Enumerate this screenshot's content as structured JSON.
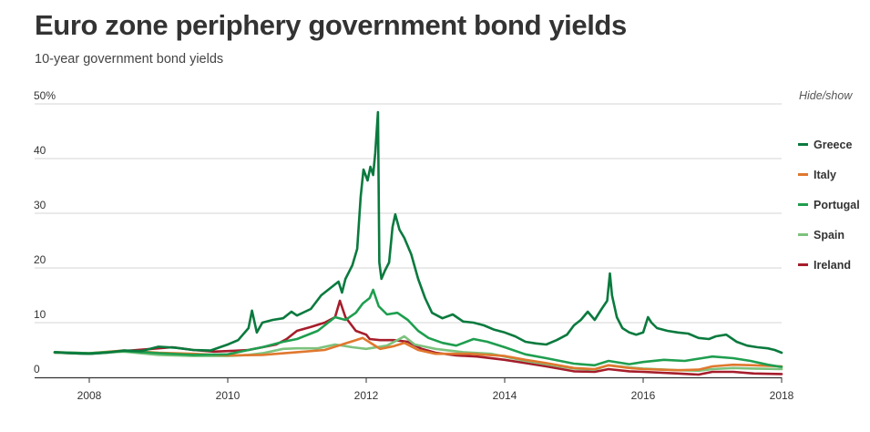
{
  "header": {
    "title": "Euro zone periphery government bond yields",
    "subtitle": "10-year government bond yields"
  },
  "legend": {
    "toggle_label": "Hide/show",
    "placement": "right"
  },
  "chart_data": {
    "type": "line",
    "title": "Euro zone periphery government bond yields",
    "subtitle": "10-year government bond yields",
    "xlabel": "",
    "ylabel": "",
    "xlim": [
      2007.5,
      2018.0
    ],
    "ylim": [
      0,
      50
    ],
    "x_ticks": [
      2008,
      2010,
      2012,
      2014,
      2016,
      2018
    ],
    "x_tick_labels": [
      "2008",
      "2010",
      "2012",
      "2014",
      "2016",
      "2018"
    ],
    "y_ticks": [
      0,
      10,
      20,
      30,
      40,
      50
    ],
    "y_tick_labels": [
      "0",
      "10",
      "20",
      "30",
      "40",
      "50%"
    ],
    "grid": "horizontal",
    "series": [
      {
        "name": "Greece",
        "color": "#0a7a3e",
        "points": [
          [
            2007.5,
            4.6
          ],
          [
            2007.75,
            4.4
          ],
          [
            2008.0,
            4.3
          ],
          [
            2008.25,
            4.5
          ],
          [
            2008.5,
            4.9
          ],
          [
            2008.75,
            4.8
          ],
          [
            2009.0,
            5.6
          ],
          [
            2009.25,
            5.4
          ],
          [
            2009.5,
            5.0
          ],
          [
            2009.75,
            4.9
          ],
          [
            2010.0,
            6.0
          ],
          [
            2010.15,
            6.8
          ],
          [
            2010.3,
            9.0
          ],
          [
            2010.35,
            12.2
          ],
          [
            2010.42,
            8.2
          ],
          [
            2010.5,
            10.0
          ],
          [
            2010.65,
            10.5
          ],
          [
            2010.8,
            10.8
          ],
          [
            2010.92,
            12.0
          ],
          [
            2011.0,
            11.3
          ],
          [
            2011.2,
            12.5
          ],
          [
            2011.35,
            15.0
          ],
          [
            2011.5,
            16.5
          ],
          [
            2011.6,
            17.5
          ],
          [
            2011.65,
            15.5
          ],
          [
            2011.7,
            18.0
          ],
          [
            2011.8,
            20.5
          ],
          [
            2011.87,
            23.5
          ],
          [
            2011.92,
            33.0
          ],
          [
            2011.96,
            38.0
          ],
          [
            2012.02,
            36.0
          ],
          [
            2012.06,
            38.5
          ],
          [
            2012.1,
            37.0
          ],
          [
            2012.13,
            41.0
          ],
          [
            2012.17,
            48.5
          ],
          [
            2012.19,
            21.0
          ],
          [
            2012.22,
            18.0
          ],
          [
            2012.27,
            19.5
          ],
          [
            2012.33,
            21.0
          ],
          [
            2012.38,
            27.5
          ],
          [
            2012.42,
            29.8
          ],
          [
            2012.48,
            27.0
          ],
          [
            2012.55,
            25.5
          ],
          [
            2012.65,
            22.5
          ],
          [
            2012.75,
            18.0
          ],
          [
            2012.85,
            14.5
          ],
          [
            2012.95,
            11.8
          ],
          [
            2013.1,
            10.8
          ],
          [
            2013.25,
            11.5
          ],
          [
            2013.4,
            10.2
          ],
          [
            2013.55,
            10.0
          ],
          [
            2013.7,
            9.5
          ],
          [
            2013.85,
            8.7
          ],
          [
            2014.0,
            8.2
          ],
          [
            2014.15,
            7.5
          ],
          [
            2014.3,
            6.5
          ],
          [
            2014.45,
            6.2
          ],
          [
            2014.6,
            6.0
          ],
          [
            2014.75,
            6.8
          ],
          [
            2014.9,
            7.8
          ],
          [
            2015.0,
            9.5
          ],
          [
            2015.1,
            10.5
          ],
          [
            2015.2,
            12.0
          ],
          [
            2015.3,
            10.5
          ],
          [
            2015.4,
            12.5
          ],
          [
            2015.48,
            14.0
          ],
          [
            2015.52,
            19.0
          ],
          [
            2015.55,
            15.0
          ],
          [
            2015.62,
            11.0
          ],
          [
            2015.7,
            9.0
          ],
          [
            2015.8,
            8.2
          ],
          [
            2015.9,
            7.8
          ],
          [
            2016.0,
            8.2
          ],
          [
            2016.07,
            11.0
          ],
          [
            2016.12,
            10.0
          ],
          [
            2016.2,
            9.0
          ],
          [
            2016.35,
            8.5
          ],
          [
            2016.5,
            8.2
          ],
          [
            2016.65,
            8.0
          ],
          [
            2016.8,
            7.2
          ],
          [
            2016.95,
            7.0
          ],
          [
            2017.05,
            7.5
          ],
          [
            2017.2,
            7.8
          ],
          [
            2017.35,
            6.5
          ],
          [
            2017.5,
            5.8
          ],
          [
            2017.65,
            5.5
          ],
          [
            2017.8,
            5.3
          ],
          [
            2017.9,
            5.0
          ],
          [
            2018.0,
            4.5
          ]
        ]
      },
      {
        "name": "Italy",
        "color": "#e0782e",
        "points": [
          [
            2007.5,
            4.6
          ],
          [
            2008.0,
            4.4
          ],
          [
            2008.5,
            4.9
          ],
          [
            2009.0,
            4.5
          ],
          [
            2009.5,
            4.3
          ],
          [
            2010.0,
            4.0
          ],
          [
            2010.5,
            4.1
          ],
          [
            2011.0,
            4.6
          ],
          [
            2011.4,
            5.0
          ],
          [
            2011.6,
            5.8
          ],
          [
            2011.85,
            6.8
          ],
          [
            2011.95,
            7.2
          ],
          [
            2012.1,
            6.0
          ],
          [
            2012.2,
            5.2
          ],
          [
            2012.4,
            5.7
          ],
          [
            2012.55,
            6.3
          ],
          [
            2012.75,
            5.0
          ],
          [
            2013.0,
            4.3
          ],
          [
            2013.5,
            4.3
          ],
          [
            2014.0,
            3.9
          ],
          [
            2014.3,
            3.2
          ],
          [
            2014.6,
            2.6
          ],
          [
            2015.0,
            1.7
          ],
          [
            2015.3,
            1.5
          ],
          [
            2015.5,
            2.2
          ],
          [
            2015.8,
            1.7
          ],
          [
            2016.0,
            1.5
          ],
          [
            2016.5,
            1.3
          ],
          [
            2016.8,
            1.4
          ],
          [
            2017.0,
            2.0
          ],
          [
            2017.3,
            2.3
          ],
          [
            2017.6,
            2.2
          ],
          [
            2018.0,
            2.0
          ]
        ]
      },
      {
        "name": "Portugal",
        "color": "#1f9e4f",
        "points": [
          [
            2007.5,
            4.6
          ],
          [
            2008.0,
            4.4
          ],
          [
            2008.5,
            4.8
          ],
          [
            2009.0,
            4.4
          ],
          [
            2009.5,
            4.1
          ],
          [
            2010.0,
            4.2
          ],
          [
            2010.3,
            5.0
          ],
          [
            2010.5,
            5.5
          ],
          [
            2010.8,
            6.5
          ],
          [
            2011.0,
            7.0
          ],
          [
            2011.3,
            8.5
          ],
          [
            2011.55,
            11.0
          ],
          [
            2011.7,
            10.5
          ],
          [
            2011.85,
            11.8
          ],
          [
            2011.95,
            13.5
          ],
          [
            2012.05,
            14.5
          ],
          [
            2012.1,
            16.0
          ],
          [
            2012.18,
            13.0
          ],
          [
            2012.3,
            11.5
          ],
          [
            2012.45,
            11.8
          ],
          [
            2012.6,
            10.5
          ],
          [
            2012.75,
            8.5
          ],
          [
            2012.9,
            7.2
          ],
          [
            2013.1,
            6.3
          ],
          [
            2013.3,
            5.8
          ],
          [
            2013.55,
            7.0
          ],
          [
            2013.75,
            6.5
          ],
          [
            2014.0,
            5.5
          ],
          [
            2014.3,
            4.2
          ],
          [
            2014.6,
            3.5
          ],
          [
            2015.0,
            2.5
          ],
          [
            2015.3,
            2.2
          ],
          [
            2015.5,
            3.0
          ],
          [
            2015.8,
            2.4
          ],
          [
            2016.0,
            2.8
          ],
          [
            2016.3,
            3.2
          ],
          [
            2016.6,
            3.0
          ],
          [
            2016.85,
            3.5
          ],
          [
            2017.0,
            3.8
          ],
          [
            2017.3,
            3.5
          ],
          [
            2017.55,
            3.0
          ],
          [
            2017.8,
            2.3
          ],
          [
            2018.0,
            1.9
          ]
        ]
      },
      {
        "name": "Spain",
        "color": "#7dc27d",
        "points": [
          [
            2007.5,
            4.5
          ],
          [
            2008.0,
            4.3
          ],
          [
            2008.5,
            4.7
          ],
          [
            2009.0,
            4.1
          ],
          [
            2009.5,
            3.9
          ],
          [
            2010.0,
            3.9
          ],
          [
            2010.3,
            4.1
          ],
          [
            2010.5,
            4.4
          ],
          [
            2010.8,
            5.2
          ],
          [
            2011.0,
            5.3
          ],
          [
            2011.3,
            5.3
          ],
          [
            2011.55,
            6.0
          ],
          [
            2011.8,
            5.5
          ],
          [
            2012.0,
            5.2
          ],
          [
            2012.3,
            5.8
          ],
          [
            2012.45,
            6.8
          ],
          [
            2012.55,
            7.5
          ],
          [
            2012.7,
            6.0
          ],
          [
            2012.85,
            5.6
          ],
          [
            2013.0,
            5.2
          ],
          [
            2013.4,
            4.6
          ],
          [
            2013.8,
            4.3
          ],
          [
            2014.0,
            3.8
          ],
          [
            2014.3,
            3.0
          ],
          [
            2014.6,
            2.4
          ],
          [
            2015.0,
            1.6
          ],
          [
            2015.3,
            1.4
          ],
          [
            2015.5,
            2.2
          ],
          [
            2015.8,
            1.8
          ],
          [
            2016.0,
            1.6
          ],
          [
            2016.5,
            1.3
          ],
          [
            2016.8,
            1.2
          ],
          [
            2017.0,
            1.5
          ],
          [
            2017.3,
            1.7
          ],
          [
            2017.6,
            1.6
          ],
          [
            2018.0,
            1.5
          ]
        ]
      },
      {
        "name": "Ireland",
        "color": "#a61d2b",
        "points": [
          [
            2007.5,
            4.5
          ],
          [
            2008.0,
            4.3
          ],
          [
            2008.5,
            4.8
          ],
          [
            2009.0,
            5.3
          ],
          [
            2009.2,
            5.5
          ],
          [
            2009.5,
            5.0
          ],
          [
            2009.8,
            4.7
          ],
          [
            2010.0,
            4.8
          ],
          [
            2010.3,
            5.0
          ],
          [
            2010.5,
            5.5
          ],
          [
            2010.7,
            6.0
          ],
          [
            2010.85,
            7.0
          ],
          [
            2011.0,
            8.5
          ],
          [
            2011.2,
            9.2
          ],
          [
            2011.4,
            10.0
          ],
          [
            2011.55,
            11.0
          ],
          [
            2011.62,
            14.0
          ],
          [
            2011.7,
            11.0
          ],
          [
            2011.85,
            8.5
          ],
          [
            2012.0,
            7.8
          ],
          [
            2012.05,
            7.0
          ],
          [
            2012.2,
            6.8
          ],
          [
            2012.4,
            6.8
          ],
          [
            2012.6,
            6.5
          ],
          [
            2012.8,
            5.2
          ],
          [
            2013.0,
            4.5
          ],
          [
            2013.3,
            4.0
          ],
          [
            2013.6,
            3.8
          ],
          [
            2014.0,
            3.2
          ],
          [
            2014.3,
            2.6
          ],
          [
            2014.6,
            2.0
          ],
          [
            2015.0,
            1.1
          ],
          [
            2015.3,
            1.0
          ],
          [
            2015.5,
            1.5
          ],
          [
            2015.8,
            1.1
          ],
          [
            2016.0,
            1.0
          ],
          [
            2016.5,
            0.7
          ],
          [
            2016.8,
            0.5
          ],
          [
            2017.0,
            1.0
          ],
          [
            2017.3,
            1.0
          ],
          [
            2017.6,
            0.7
          ],
          [
            2018.0,
            0.6
          ]
        ]
      }
    ]
  }
}
